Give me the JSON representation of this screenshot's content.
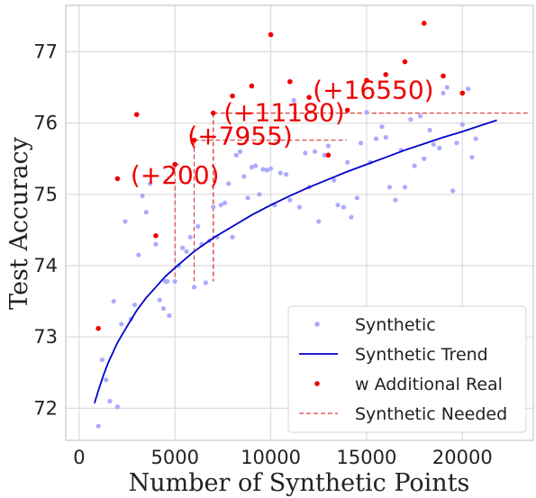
{
  "chart_data": {
    "type": "scatter",
    "xlabel": "Number of Synthetic Points",
    "ylabel": "Test Accuracy",
    "xlim": [
      -700,
      23700
    ],
    "ylim": [
      71.55,
      77.65
    ],
    "xticks": [
      0,
      5000,
      10000,
      15000,
      20000
    ],
    "yticks": [
      72,
      73,
      74,
      75,
      76,
      77
    ],
    "grid": true,
    "legend_position": "bottom-right",
    "legend": [
      "Synthetic",
      "Synthetic Trend",
      "w Additional Real",
      "Synthetic Needed"
    ],
    "colors": {
      "synthetic": "#aaaaff",
      "trend": "#0000cc",
      "real": "#ee0000",
      "needed": "#d63a3a"
    },
    "series": [
      {
        "name": "Synthetic",
        "kind": "scatter",
        "points": [
          [
            1000,
            71.75
          ],
          [
            1200,
            72.68
          ],
          [
            1400,
            72.4
          ],
          [
            1600,
            72.1
          ],
          [
            1800,
            73.5
          ],
          [
            2000,
            72.02
          ],
          [
            2200,
            73.18
          ],
          [
            2400,
            74.62
          ],
          [
            2700,
            73.25
          ],
          [
            2900,
            73.45
          ],
          [
            3100,
            74.15
          ],
          [
            3300,
            74.98
          ],
          [
            3500,
            74.75
          ],
          [
            3700,
            75.15
          ],
          [
            4000,
            74.3
          ],
          [
            4200,
            73.52
          ],
          [
            4400,
            73.4
          ],
          [
            4500,
            73.78
          ],
          [
            4600,
            73.78
          ],
          [
            4700,
            73.3
          ],
          [
            5000,
            73.78
          ],
          [
            5200,
            74.0
          ],
          [
            5400,
            74.25
          ],
          [
            5600,
            74.2
          ],
          [
            5800,
            74.4
          ],
          [
            6000,
            73.7
          ],
          [
            6200,
            74.55
          ],
          [
            6400,
            74.3
          ],
          [
            6600,
            73.76
          ],
          [
            6800,
            74.35
          ],
          [
            7000,
            74.82
          ],
          [
            7200,
            74.4
          ],
          [
            7400,
            74.85
          ],
          [
            7600,
            74.88
          ],
          [
            7800,
            75.15
          ],
          [
            8000,
            74.4
          ],
          [
            8200,
            75.55
          ],
          [
            8400,
            75.6
          ],
          [
            8600,
            75.25
          ],
          [
            8800,
            74.95
          ],
          [
            9000,
            75.38
          ],
          [
            9200,
            75.4
          ],
          [
            9400,
            75.0
          ],
          [
            9600,
            75.35
          ],
          [
            9800,
            75.34
          ],
          [
            10000,
            75.36
          ],
          [
            10200,
            74.85
          ],
          [
            10500,
            75.3
          ],
          [
            10800,
            75.28
          ],
          [
            11000,
            74.92
          ],
          [
            11200,
            76.32
          ],
          [
            11500,
            74.82
          ],
          [
            11800,
            75.58
          ],
          [
            12000,
            75.1
          ],
          [
            12300,
            75.6
          ],
          [
            12500,
            74.62
          ],
          [
            12800,
            75.55
          ],
          [
            13000,
            75.68
          ],
          [
            13300,
            75.2
          ],
          [
            13500,
            74.85
          ],
          [
            13800,
            74.82
          ],
          [
            14000,
            75.45
          ],
          [
            14200,
            74.68
          ],
          [
            14500,
            74.95
          ],
          [
            14700,
            75.72
          ],
          [
            15000,
            76.15
          ],
          [
            15200,
            75.45
          ],
          [
            15500,
            75.78
          ],
          [
            15800,
            75.95
          ],
          [
            16000,
            75.8
          ],
          [
            16200,
            75.1
          ],
          [
            16500,
            74.92
          ],
          [
            16800,
            75.62
          ],
          [
            17000,
            75.1
          ],
          [
            17300,
            76.05
          ],
          [
            17500,
            75.4
          ],
          [
            17800,
            76.1
          ],
          [
            18000,
            75.5
          ],
          [
            18300,
            75.9
          ],
          [
            18500,
            75.7
          ],
          [
            18800,
            75.65
          ],
          [
            19000,
            76.42
          ],
          [
            19200,
            76.5
          ],
          [
            19500,
            75.05
          ],
          [
            19700,
            75.72
          ],
          [
            20000,
            75.98
          ],
          [
            20300,
            76.48
          ],
          [
            20500,
            75.52
          ],
          [
            20700,
            75.78
          ]
        ]
      },
      {
        "name": "Synthetic Trend",
        "kind": "line",
        "points": [
          [
            800,
            72.07
          ],
          [
            1000,
            72.25
          ],
          [
            1250,
            72.45
          ],
          [
            1500,
            72.63
          ],
          [
            2000,
            72.92
          ],
          [
            2500,
            73.15
          ],
          [
            3000,
            73.37
          ],
          [
            3500,
            73.55
          ],
          [
            4000,
            73.7
          ],
          [
            4500,
            73.85
          ],
          [
            5000,
            73.97
          ],
          [
            6000,
            74.2
          ],
          [
            7000,
            74.39
          ],
          [
            8000,
            74.55
          ],
          [
            9000,
            74.71
          ],
          [
            10000,
            74.85
          ],
          [
            11000,
            74.98
          ],
          [
            12000,
            75.1
          ],
          [
            13000,
            75.21
          ],
          [
            14000,
            75.32
          ],
          [
            15000,
            75.42
          ],
          [
            16000,
            75.52
          ],
          [
            17000,
            75.62
          ],
          [
            18000,
            75.71
          ],
          [
            19000,
            75.8
          ],
          [
            20000,
            75.88
          ],
          [
            21000,
            75.97
          ],
          [
            21800,
            76.04
          ]
        ]
      },
      {
        "name": "w Additional Real",
        "kind": "scatter",
        "points": [
          [
            1000,
            73.12
          ],
          [
            2000,
            75.22
          ],
          [
            3000,
            76.12
          ],
          [
            4000,
            74.42
          ],
          [
            5000,
            75.42
          ],
          [
            6000,
            75.76
          ],
          [
            7000,
            76.14
          ],
          [
            8000,
            76.38
          ],
          [
            9000,
            76.52
          ],
          [
            10000,
            77.24
          ],
          [
            11000,
            76.58
          ],
          [
            12000,
            76.36
          ],
          [
            13000,
            75.55
          ],
          [
            14000,
            76.18
          ],
          [
            15000,
            76.6
          ],
          [
            16000,
            76.68
          ],
          [
            17000,
            76.86
          ],
          [
            18000,
            77.4
          ],
          [
            19000,
            76.66
          ],
          [
            20000,
            76.42
          ]
        ]
      }
    ],
    "needed": [
      {
        "x": 5000,
        "y": 75.42,
        "x_end": 5200,
        "label": "(+200)"
      },
      {
        "x": 6000,
        "y": 75.76,
        "x_end": 13955,
        "label": "(+7955)"
      },
      {
        "x": 7000,
        "y": 76.14,
        "x_end": 18180,
        "label": "(+11180)"
      },
      {
        "x": 7000,
        "y": 76.14,
        "x_end": 23550,
        "label": "(+16550)"
      }
    ]
  }
}
